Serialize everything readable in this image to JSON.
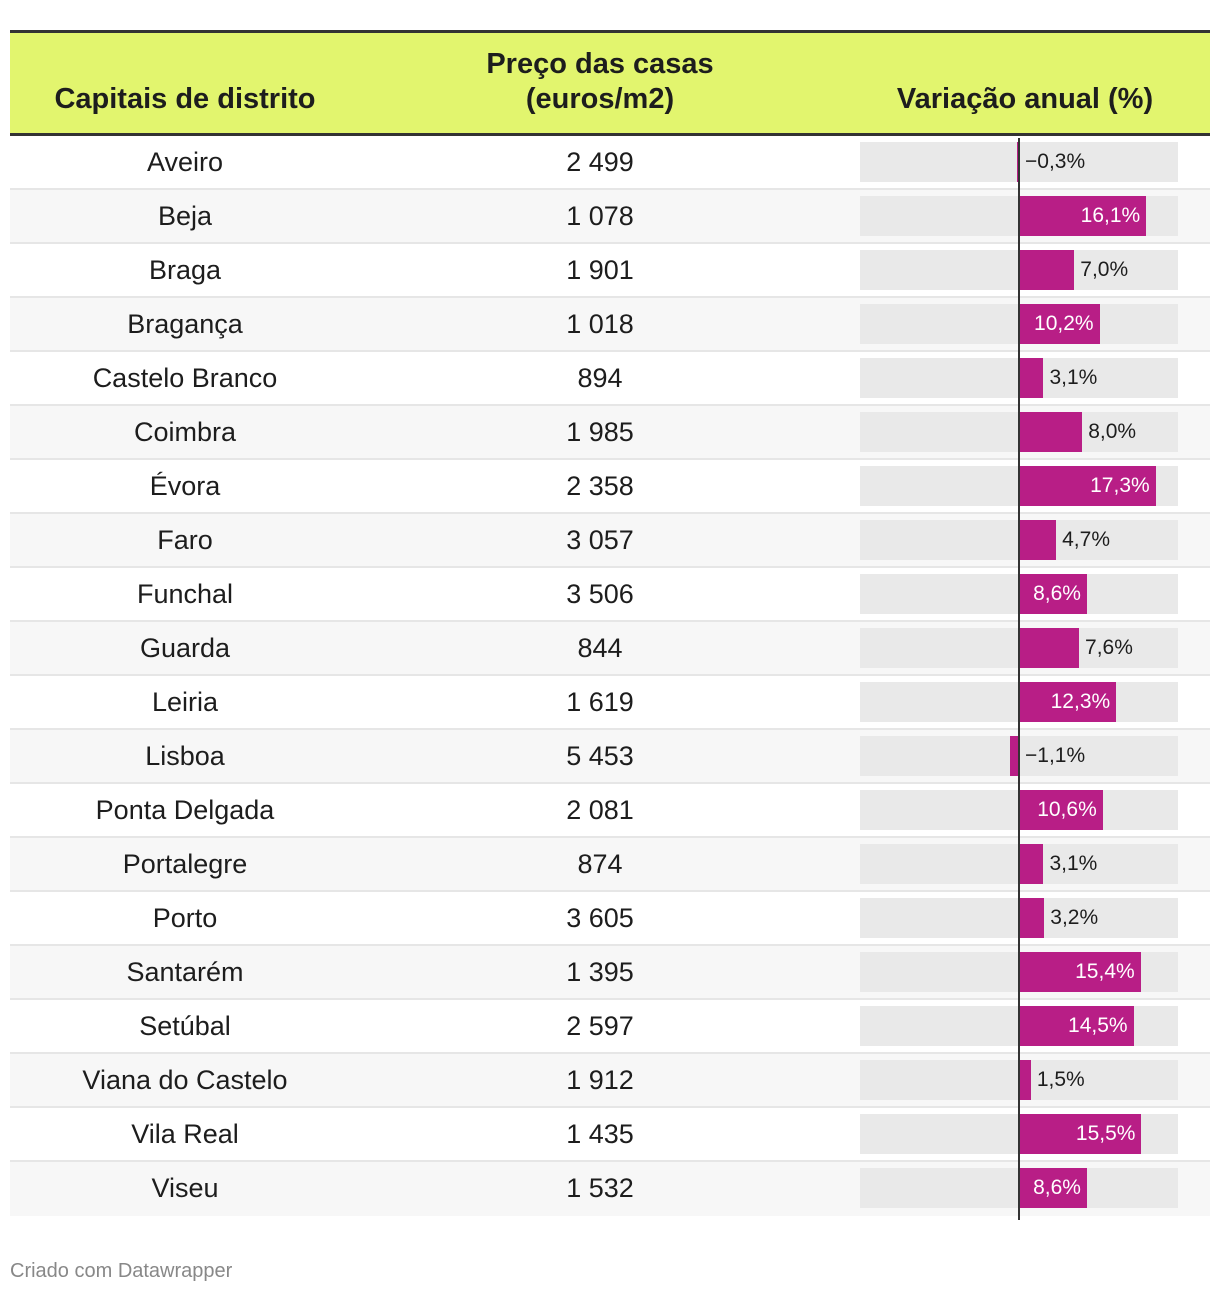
{
  "table": {
    "headers": {
      "city": "Capitais de distrito",
      "price_line1": "Preço das casas",
      "price_line2": "(euros/m2)",
      "change": "Variação anual (%)"
    }
  },
  "chart_data": {
    "type": "table",
    "columns": [
      "Capitais de distrito",
      "Preço das casas (euros/m2)",
      "Variação anual (%)"
    ],
    "bar_color": "#b81e86",
    "header_color": "#e2f56e",
    "bar_domain": [
      -5,
      18
    ],
    "rows": [
      {
        "city": "Aveiro",
        "price": "2 499",
        "change": -0.3,
        "change_label": "−0,3%"
      },
      {
        "city": "Beja",
        "price": "1 078",
        "change": 16.1,
        "change_label": "16,1%"
      },
      {
        "city": "Braga",
        "price": "1 901",
        "change": 7.0,
        "change_label": "7,0%"
      },
      {
        "city": "Bragança",
        "price": "1 018",
        "change": 10.2,
        "change_label": "10,2%"
      },
      {
        "city": "Castelo Branco",
        "price": "894",
        "change": 3.1,
        "change_label": "3,1%"
      },
      {
        "city": "Coimbra",
        "price": "1 985",
        "change": 8.0,
        "change_label": "8,0%"
      },
      {
        "city": "Évora",
        "price": "2 358",
        "change": 17.3,
        "change_label": "17,3%"
      },
      {
        "city": "Faro",
        "price": "3 057",
        "change": 4.7,
        "change_label": "4,7%"
      },
      {
        "city": "Funchal",
        "price": "3 506",
        "change": 8.6,
        "change_label": "8,6%"
      },
      {
        "city": "Guarda",
        "price": "844",
        "change": 7.6,
        "change_label": "7,6%"
      },
      {
        "city": "Leiria",
        "price": "1 619",
        "change": 12.3,
        "change_label": "12,3%"
      },
      {
        "city": "Lisboa",
        "price": "5 453",
        "change": -1.1,
        "change_label": "−1,1%"
      },
      {
        "city": "Ponta Delgada",
        "price": "2 081",
        "change": 10.6,
        "change_label": "10,6%"
      },
      {
        "city": "Portalegre",
        "price": "874",
        "change": 3.1,
        "change_label": "3,1%"
      },
      {
        "city": "Porto",
        "price": "3 605",
        "change": 3.2,
        "change_label": "3,2%"
      },
      {
        "city": "Santarém",
        "price": "1 395",
        "change": 15.4,
        "change_label": "15,4%"
      },
      {
        "city": "Setúbal",
        "price": "2 597",
        "change": 14.5,
        "change_label": "14,5%"
      },
      {
        "city": "Viana do Castelo",
        "price": "1 912",
        "change": 1.5,
        "change_label": "1,5%"
      },
      {
        "city": "Vila Real",
        "price": "1 435",
        "change": 15.5,
        "change_label": "15,5%"
      },
      {
        "city": "Viseu",
        "price": "1 532",
        "change": 8.6,
        "change_label": "8,6%"
      }
    ]
  },
  "footer": {
    "credit": "Criado com Datawrapper"
  }
}
